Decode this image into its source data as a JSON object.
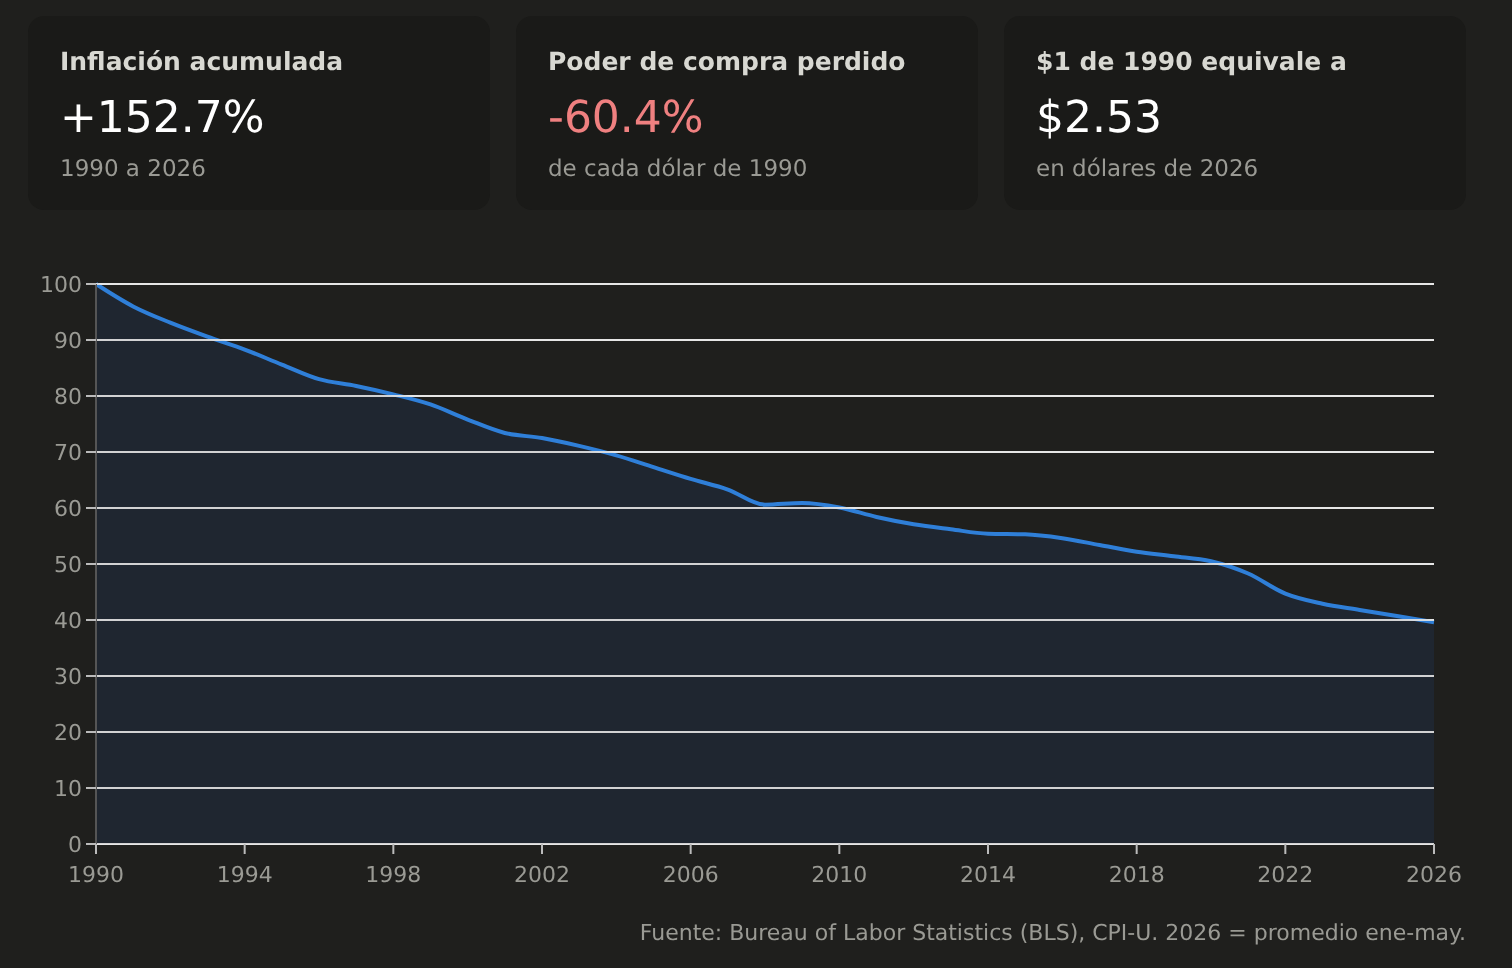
{
  "chart_data": [
    {
      "type": "other",
      "title": "Inflación acumulada",
      "subtitle": "+152.7%",
      "color": "#ffffff",
      "annotations": [
        "1990 a 2026"
      ]
    },
    {
      "type": "other",
      "title": "Poder de compra perdido",
      "subtitle": "-60.4%",
      "color": "#ef8080",
      "annotations": [
        "de cada dólar de 1990"
      ]
    },
    {
      "type": "other",
      "title": "$1 de 1990 equivale a",
      "subtitle": "$2.53",
      "color": "#ffffff",
      "annotations": [
        "en dólares de 2026"
      ]
    },
    {
      "type": "area",
      "x": [
        1990,
        1991,
        1992,
        1993,
        1994,
        1995,
        1996,
        1997,
        1998,
        1999,
        2000,
        2001,
        2002,
        2003,
        2004,
        2005,
        2006,
        2007,
        2008,
        2009,
        2010,
        2011,
        2012,
        2013,
        2014,
        2015,
        2016,
        2017,
        2018,
        2019,
        2020,
        2021,
        2022,
        2023,
        2024,
        2025,
        2026
      ],
      "series": [
        {
          "color": "#2f7fd8",
          "values": [
            100,
            96,
            93.1,
            90.6,
            88.3,
            85.6,
            83,
            81.8,
            80.3,
            78.5,
            75.8,
            73.4,
            72.5,
            71.1,
            69.4,
            67.3,
            65.2,
            63.3,
            60.6,
            60.9,
            60.1,
            58.4,
            57.1,
            56.2,
            55.4,
            55.3,
            54.6,
            53.4,
            52.2,
            51.4,
            50.5,
            48.3,
            44.7,
            42.9,
            41.8,
            40.7,
            39.6
          ]
        }
      ],
      "xlim": [
        1990,
        2026
      ],
      "xticks": [
        1990,
        1994,
        1998,
        2002,
        2006,
        2010,
        2014,
        2018,
        2022,
        2026
      ],
      "ylim": [
        0,
        100
      ],
      "yticks": [
        0,
        10,
        20,
        30,
        40,
        50,
        60,
        70,
        80,
        90,
        100
      ],
      "grid": "y",
      "annotations": [
        "Fuente: Bureau of Labor Statistics (BLS), CPI-U. 2026 = promedio ene-may."
      ]
    }
  ]
}
